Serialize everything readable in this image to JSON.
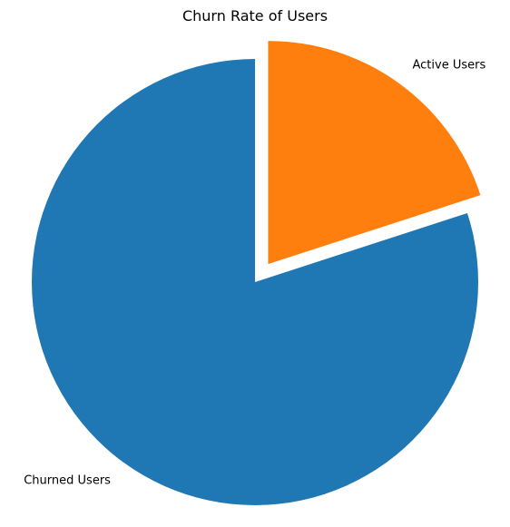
{
  "chart_data": {
    "type": "pie",
    "title": "Churn Rate of Users",
    "labels": [
      "Active Users",
      "Churned Users"
    ],
    "values": [
      20,
      80
    ],
    "colors": [
      "#ff7f0e",
      "#1f77b4"
    ],
    "explode": [
      0.1,
      0
    ],
    "start_angle_deg": 90,
    "direction": "clockwise",
    "legend": "none"
  }
}
